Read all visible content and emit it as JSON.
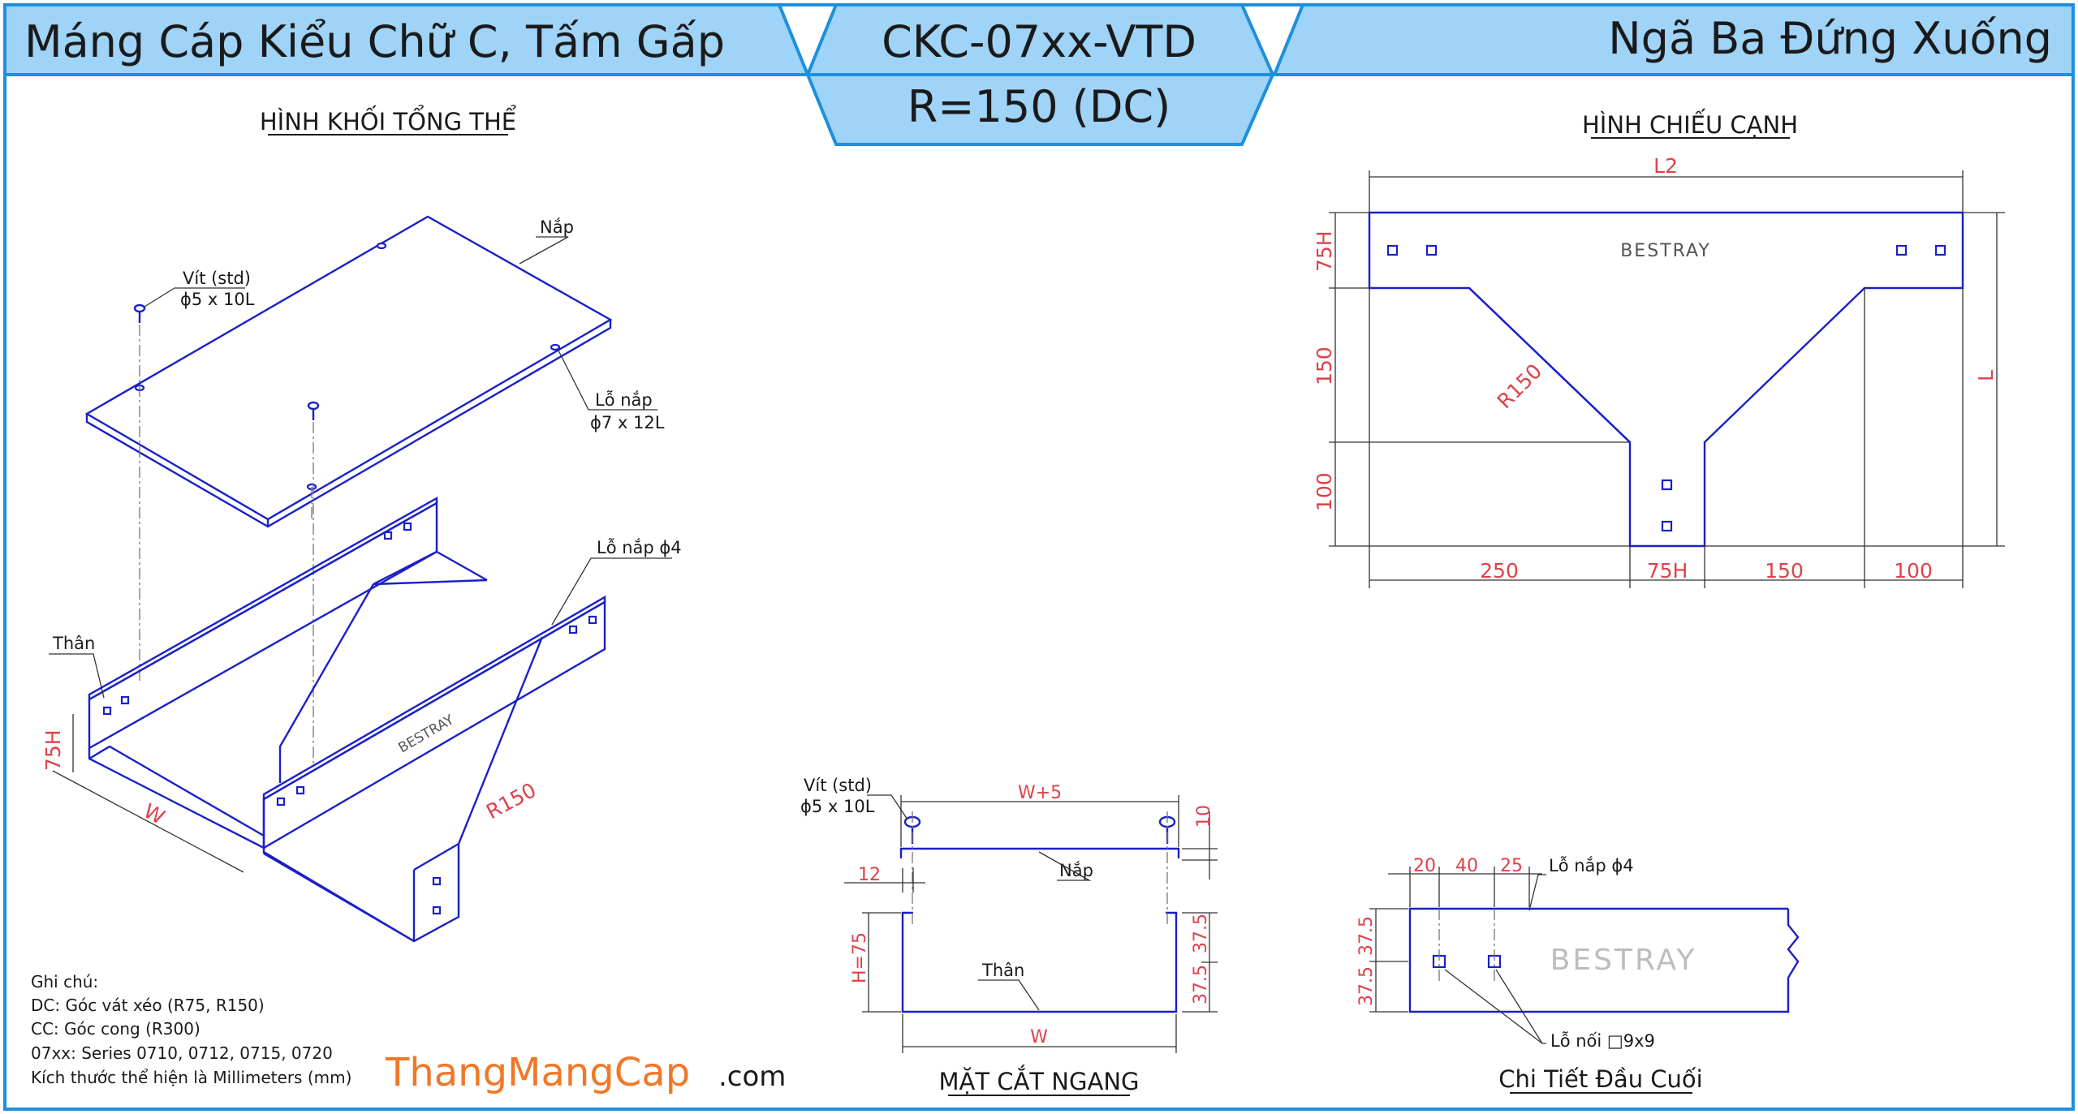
{
  "header": {
    "left_title": "Máng Cáp Kiểu Chữ C, Tấm Gấp",
    "code": "CKC-07xx-VTD",
    "radius": "R=150 (DC)",
    "right_title": "Ngã Ba Đứng Xuống"
  },
  "sections": {
    "iso": "HÌNH KHỐI TỔNG THỂ",
    "side": "HÌNH CHIẾU CẠNH",
    "cross": "MẶT CẮT NGANG",
    "end": "Chi Tiết Đầu Cuối"
  },
  "iso_labels": {
    "cover": "Nắp",
    "screw": "Vít (std)",
    "screw_size": "ϕ5 x 10L",
    "cover_hole": "Lỗ nắp",
    "cover_hole_size": "ϕ7 x 12L",
    "cover_hole4": "Lỗ nắp ϕ4",
    "body": "Thân",
    "dim_h": "75H",
    "dim_w": "W",
    "dim_r": "R150",
    "brand": "BESTRAY"
  },
  "side_view": {
    "dim_l2": "L2",
    "dim_l": "L",
    "dim_75h": "75H",
    "dim_150": "150",
    "dim_100": "100",
    "dim_r150": "R150",
    "bottom_250": "250",
    "bottom_75h": "75H",
    "bottom_150": "150",
    "bottom_100": "100",
    "brand": "BESTRAY"
  },
  "cross_section": {
    "screw": "Vít (std)",
    "screw_size": "ϕ5 x 10L",
    "w5": "W+5",
    "d10": "10",
    "d12": "12",
    "cover": "Nắp",
    "body": "Thân",
    "h75": "H=75",
    "d375a": "37.5",
    "d375b": "37.5",
    "w": "W"
  },
  "end_detail": {
    "d20": "20",
    "d40": "40",
    "d25": "25",
    "hole4": "Lỗ nắp ϕ4",
    "d375a": "37.5",
    "d375b": "37.5",
    "joint": "Lỗ nối □9x9",
    "brand": "BESTRAY"
  },
  "notes": {
    "heading": "Ghi chú:",
    "line1": "DC: Góc vát xéo (R75, R150)",
    "line2": "CC: Góc cong (R300)",
    "line3": "07xx: Series 0710, 0712, 0715, 0720",
    "line4": "Kích thước thể hiện là Millimeters (mm)"
  },
  "watermark": {
    "main": "ThangMangCap",
    "suffix": ".com"
  },
  "colors": {
    "header_fill": "#9fd3f7",
    "border": "#1e8fdc",
    "line": "#1a20c8",
    "dimension": "#e0404a",
    "watermark": "#f07828"
  }
}
